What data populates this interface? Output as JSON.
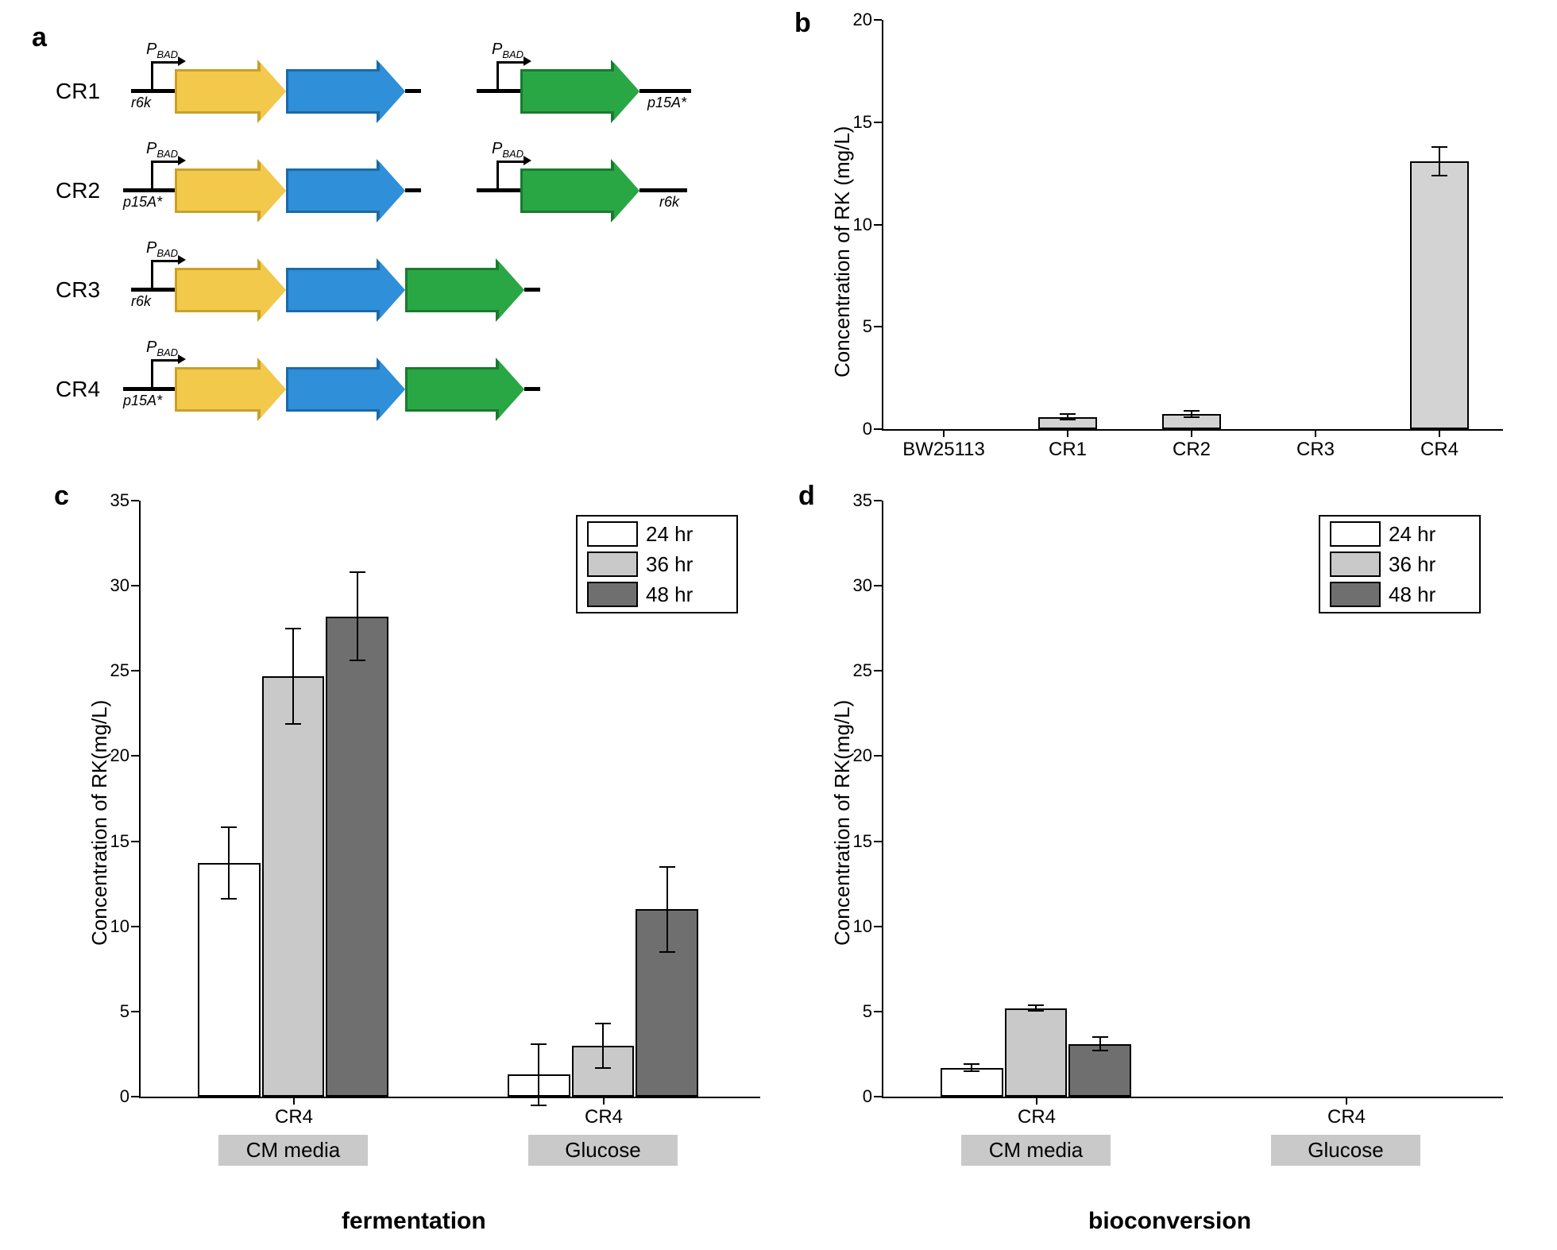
{
  "panels": {
    "a": "a",
    "b": "b",
    "c": "c",
    "d": "d"
  },
  "gene_colors": {
    "yellow_fill": "#f2c94a",
    "yellow_stroke": "#caa029",
    "blue_fill": "#2f8fd8",
    "blue_stroke": "#1b6aa8",
    "green_fill": "#2aa745",
    "green_stroke": "#1a7a2e"
  },
  "cr": {
    "rows": [
      "CR1",
      "CR2",
      "CR3",
      "CR4"
    ],
    "promoter_label": "P",
    "promoter_label_sub": "BAD",
    "origins": {
      "r6k": "r6k",
      "p15A": "p15A*"
    }
  },
  "panel_b": {
    "type": "bar",
    "ylabel": "Concentration of RK (mg/L)",
    "ylim": [
      0,
      20
    ],
    "ytick_step": 5,
    "categories": [
      "BW25113",
      "CR1",
      "CR2",
      "CR3",
      "CR4"
    ],
    "values": [
      0,
      0.6,
      0.75,
      0,
      13.1
    ],
    "errors": [
      0,
      0.15,
      0.15,
      0,
      0.7
    ],
    "bar_color": "#d3d3d3",
    "bar_stroke": "#000000",
    "bar_width": 0.48,
    "label_fontsize": 24,
    "tick_fontsize": 22,
    "ylabel_fontsize": 26
  },
  "panel_c": {
    "type": "grouped-bar",
    "ylabel": "Concentration of RK(mg/L)",
    "title_below": "fermentation",
    "ylim": [
      0,
      35
    ],
    "ytick_step": 5,
    "groups": [
      "CR4",
      "CR4"
    ],
    "group_sub": [
      "CM media",
      "Glucose"
    ],
    "series": [
      "24 hr",
      "36 hr",
      "48 hr"
    ],
    "series_colors": [
      "#ffffff",
      "#c9c9c9",
      "#6f6f6f"
    ],
    "values": [
      [
        13.7,
        24.7,
        28.2
      ],
      [
        1.3,
        3.0,
        11.0
      ]
    ],
    "errors": [
      [
        2.1,
        2.8,
        2.6
      ],
      [
        1.8,
        1.3,
        2.5
      ]
    ],
    "bar_width": 0.8,
    "label_fontsize": 26,
    "tick_fontsize": 22,
    "ylabel_fontsize": 26
  },
  "panel_d": {
    "type": "grouped-bar",
    "ylabel": "Concentration of RK(mg/L)",
    "title_below": "bioconversion",
    "ylim": [
      0,
      35
    ],
    "ytick_step": 5,
    "groups": [
      "CR4",
      "CR4"
    ],
    "group_sub": [
      "CM media",
      "Glucose"
    ],
    "series": [
      "24 hr",
      "36 hr",
      "48 hr"
    ],
    "series_colors": [
      "#ffffff",
      "#c9c9c9",
      "#6f6f6f"
    ],
    "values": [
      [
        1.7,
        5.2,
        3.1
      ],
      [
        0,
        0,
        0
      ]
    ],
    "errors": [
      [
        0.2,
        0.15,
        0.4
      ],
      [
        0,
        0,
        0
      ]
    ],
    "bar_width": 0.8,
    "label_fontsize": 26,
    "tick_fontsize": 22,
    "ylabel_fontsize": 26
  },
  "colors": {
    "axis": "#000000",
    "grid": "#ffffff",
    "background": "#ffffff",
    "pill": "#c9c9c9"
  }
}
